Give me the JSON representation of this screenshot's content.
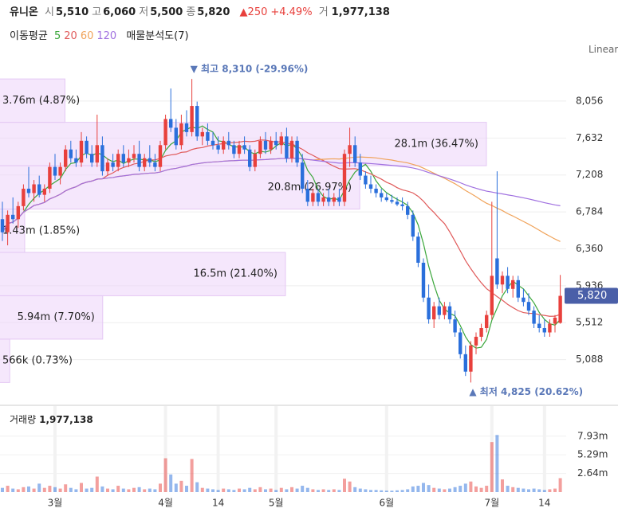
{
  "chart_data": {
    "type": "candlestick",
    "header": {
      "name": "유니온",
      "fields": [
        {
          "label": "시",
          "value": "5,510"
        },
        {
          "label": "고",
          "value": "6,060"
        },
        {
          "label": "저",
          "value": "5,500"
        },
        {
          "label": "종",
          "value": "5,820"
        }
      ],
      "change": "▲250",
      "change_pct": "+4.49%",
      "volume_label": "거",
      "volume_value": "1,977,138"
    },
    "indicator_title": "이동평균",
    "moving_averages": [
      {
        "period": 5,
        "color": "#3aa63a"
      },
      {
        "period": 20,
        "color": "#e05a5a"
      },
      {
        "period": 60,
        "color": "#f0a35a"
      },
      {
        "period": 120,
        "color": "#a070e0"
      }
    ],
    "profile_title": "매물분석도(7)",
    "scale_label": "Linear",
    "categories": [
      null,
      null,
      null,
      null,
      null,
      null,
      null,
      null,
      null,
      null,
      "3월",
      null,
      null,
      null,
      null,
      null,
      null,
      null,
      null,
      null,
      null,
      null,
      null,
      null,
      null,
      null,
      null,
      null,
      null,
      null,
      null,
      "4월",
      null,
      null,
      null,
      null,
      null,
      null,
      null,
      null,
      null,
      "14",
      null,
      null,
      null,
      null,
      null,
      null,
      null,
      null,
      null,
      null,
      "5월",
      null,
      null,
      null,
      null,
      null,
      null,
      null,
      null,
      null,
      null,
      null,
      null,
      null,
      null,
      null,
      null,
      null,
      null,
      null,
      null,
      "6월",
      null,
      null,
      null,
      null,
      null,
      null,
      null,
      null,
      null,
      null,
      null,
      null,
      null,
      null,
      null,
      null,
      null,
      null,
      null,
      "7월",
      null,
      null,
      null,
      null,
      null,
      null,
      null,
      null,
      null,
      "14",
      null,
      null,
      null
    ],
    "candles": [
      [
        6700,
        6900,
        6450,
        6550
      ],
      [
        6550,
        6800,
        6400,
        6750
      ],
      [
        6750,
        6950,
        6650,
        6700
      ],
      [
        6700,
        6900,
        6600,
        6850
      ],
      [
        6850,
        7100,
        6800,
        7050
      ],
      [
        7050,
        7300,
        6950,
        7000
      ],
      [
        7000,
        7150,
        6900,
        7100
      ],
      [
        7100,
        7200,
        6950,
        6980
      ],
      [
        6980,
        7100,
        6900,
        7050
      ],
      [
        7050,
        7350,
        7000,
        7300
      ],
      [
        7300,
        7450,
        7150,
        7200
      ],
      [
        7200,
        7350,
        7100,
        7300
      ],
      [
        7300,
        7550,
        7250,
        7500
      ],
      [
        7500,
        7600,
        7350,
        7400
      ],
      [
        7400,
        7500,
        7300,
        7350
      ],
      [
        7350,
        7700,
        7300,
        7600
      ],
      [
        7600,
        7650,
        7400,
        7450
      ],
      [
        7450,
        7550,
        7300,
        7350
      ],
      [
        7350,
        7900,
        7300,
        7550
      ],
      [
        7550,
        7650,
        7200,
        7250
      ],
      [
        7250,
        7400,
        7200,
        7350
      ],
      [
        7350,
        7450,
        7250,
        7300
      ],
      [
        7300,
        7500,
        7250,
        7450
      ],
      [
        7450,
        7550,
        7300,
        7350
      ],
      [
        7350,
        7500,
        7300,
        7400
      ],
      [
        7400,
        7550,
        7350,
        7450
      ],
      [
        7450,
        7600,
        7250,
        7300
      ],
      [
        7300,
        7450,
        7250,
        7400
      ],
      [
        7400,
        7550,
        7300,
        7350
      ],
      [
        7350,
        7450,
        7250,
        7300
      ],
      [
        7300,
        7600,
        7250,
        7550
      ],
      [
        7550,
        7900,
        7500,
        7850
      ],
      [
        7850,
        8200,
        7700,
        7750
      ],
      [
        7750,
        7850,
        7500,
        7550
      ],
      [
        7550,
        7900,
        7500,
        7800
      ],
      [
        7800,
        7950,
        7650,
        7700
      ],
      [
        7700,
        8310,
        7650,
        8000
      ],
      [
        8000,
        8050,
        7600,
        7650
      ],
      [
        7650,
        7750,
        7550,
        7700
      ],
      [
        7700,
        7800,
        7550,
        7600
      ],
      [
        7600,
        7700,
        7500,
        7550
      ],
      [
        7550,
        7650,
        7450,
        7500
      ],
      [
        7500,
        7650,
        7450,
        7600
      ],
      [
        7600,
        7700,
        7500,
        7550
      ],
      [
        7550,
        7600,
        7400,
        7450
      ],
      [
        7450,
        7600,
        7400,
        7550
      ],
      [
        7550,
        7650,
        7450,
        7500
      ],
      [
        7500,
        7550,
        7250,
        7300
      ],
      [
        7300,
        7500,
        7250,
        7450
      ],
      [
        7450,
        7650,
        7400,
        7600
      ],
      [
        7600,
        7700,
        7450,
        7500
      ],
      [
        7500,
        7650,
        7450,
        7600
      ],
      [
        7600,
        7700,
        7500,
        7550
      ],
      [
        7550,
        7700,
        7450,
        7650
      ],
      [
        7650,
        7750,
        7350,
        7400
      ],
      [
        7400,
        7650,
        7350,
        7600
      ],
      [
        7600,
        7650,
        7300,
        7350
      ],
      [
        7350,
        7450,
        7000,
        7050
      ],
      [
        7050,
        7150,
        6850,
        6900
      ],
      [
        6900,
        7050,
        6850,
        7000
      ],
      [
        7000,
        7050,
        6850,
        6900
      ],
      [
        6900,
        7000,
        6850,
        6950
      ],
      [
        6950,
        7050,
        6850,
        6900
      ],
      [
        6900,
        7000,
        6850,
        6950
      ],
      [
        6950,
        7050,
        6850,
        6900
      ],
      [
        6900,
        7500,
        6850,
        7450
      ],
      [
        7450,
        7750,
        7300,
        7550
      ],
      [
        7550,
        7650,
        7300,
        7350
      ],
      [
        7350,
        7450,
        7150,
        7200
      ],
      [
        7200,
        7250,
        7050,
        7100
      ],
      [
        7100,
        7200,
        7000,
        7050
      ],
      [
        7050,
        7100,
        6950,
        7000
      ],
      [
        7000,
        7050,
        6900,
        6950
      ],
      [
        6950,
        7000,
        6900,
        6920
      ],
      [
        6920,
        6980,
        6880,
        6900
      ],
      [
        6900,
        6950,
        6850,
        6870
      ],
      [
        6870,
        6950,
        6800,
        6850
      ],
      [
        6850,
        6900,
        6700,
        6750
      ],
      [
        6750,
        6800,
        6450,
        6500
      ],
      [
        6500,
        6550,
        6150,
        6200
      ],
      [
        6200,
        6250,
        5750,
        5800
      ],
      [
        5800,
        5950,
        5500,
        5550
      ],
      [
        5550,
        5750,
        5450,
        5700
      ],
      [
        5700,
        5800,
        5550,
        5600
      ],
      [
        5600,
        5750,
        5550,
        5700
      ],
      [
        5700,
        5750,
        5500,
        5550
      ],
      [
        5550,
        5650,
        5350,
        5400
      ],
      [
        5400,
        5450,
        5100,
        5150
      ],
      [
        5150,
        5250,
        4900,
        4950
      ],
      [
        4950,
        5300,
        4825,
        5250
      ],
      [
        5250,
        5400,
        5150,
        5350
      ],
      [
        5350,
        5500,
        5300,
        5450
      ],
      [
        5450,
        5650,
        5400,
        5600
      ],
      [
        5600,
        6900,
        5550,
        6050
      ],
      [
        6250,
        7250,
        5900,
        5950
      ],
      [
        5950,
        6100,
        5850,
        6050
      ],
      [
        6050,
        6150,
        5850,
        5900
      ],
      [
        5900,
        6050,
        5800,
        6000
      ],
      [
        6000,
        6050,
        5750,
        5800
      ],
      [
        5800,
        5900,
        5700,
        5750
      ],
      [
        5750,
        5850,
        5600,
        5650
      ],
      [
        5650,
        5700,
        5450,
        5500
      ],
      [
        5500,
        5600,
        5400,
        5450
      ],
      [
        5450,
        5550,
        5350,
        5400
      ],
      [
        5400,
        5550,
        5350,
        5500
      ],
      [
        5500,
        5600,
        5400,
        5570
      ],
      [
        5510,
        6060,
        5500,
        5820
      ]
    ],
    "up_color": "#e8403c",
    "down_color": "#2a6fdb",
    "ylim": [
      4600,
      8485
    ],
    "yticks": [
      {
        "value": 5088,
        "label": "5,088"
      },
      {
        "value": 5512,
        "label": "5,512"
      },
      {
        "value": 5936,
        "label": "5,936"
      },
      {
        "value": 6360,
        "label": "6,360"
      },
      {
        "value": 6784,
        "label": "6,784"
      },
      {
        "value": 7208,
        "label": "7,208"
      },
      {
        "value": 7632,
        "label": "7,632"
      },
      {
        "value": 8056,
        "label": "8,056"
      }
    ],
    "last_label": "5,820",
    "annotations": [
      {
        "text": "▼ 최고 8,310 (-29.96%)",
        "value": 8310
      },
      {
        "text": "▲ 최저 4,825 (20.62%)",
        "value": 4825
      }
    ],
    "volume_profile": {
      "bins": [
        4825,
        5323,
        5821,
        6319,
        6816,
        7314,
        7812,
        8310
      ],
      "values": [
        0.73,
        7.7,
        21.4,
        1.85,
        26.97,
        36.47,
        4.87
      ],
      "value_labels": [
        "566k (0.73%)",
        "5.94m (7.70%)",
        "16.5m (21.40%)",
        "1.43m (1.85%)",
        "20.8m (26.97%)",
        "28.1m (36.47%)",
        "3.76m (4.87%)"
      ]
    },
    "volume_title": "거래량",
    "volume_value": "1,977,138",
    "volume": [
      600000,
      900000,
      500000,
      400000,
      700000,
      800000,
      500000,
      1200000,
      600000,
      900000,
      700000,
      500000,
      1100000,
      600000,
      400000,
      1300000,
      500000,
      600000,
      2200000,
      800000,
      500000,
      400000,
      900000,
      500000,
      400000,
      600000,
      700000,
      400000,
      500000,
      400000,
      1200000,
      4800000,
      2500000,
      1200000,
      1600000,
      900000,
      4700000,
      1400000,
      600000,
      500000,
      400000,
      300000,
      500000,
      400000,
      300000,
      500000,
      400000,
      600000,
      400000,
      700000,
      400000,
      500000,
      300000,
      600000,
      400000,
      700000,
      500000,
      900000,
      600000,
      400000,
      300000,
      400000,
      300000,
      400000,
      300000,
      1900000,
      1500000,
      700000,
      500000,
      400000,
      300000,
      300000,
      250000,
      200000,
      200000,
      250000,
      300000,
      400000,
      800000,
      900000,
      1300000,
      1000000,
      600000,
      500000,
      400000,
      500000,
      700000,
      900000,
      1200000,
      1500000,
      800000,
      600000,
      900000,
      7100000,
      8100000,
      1800000,
      900000,
      700000,
      600000,
      500000,
      400000,
      500000,
      400000,
      300000,
      400000,
      500000,
      1977138
    ],
    "volume_ylim": [
      0,
      12200000
    ],
    "volume_yticks": [
      {
        "value": 2640000,
        "label": "2.64m"
      },
      {
        "value": 5290000,
        "label": "5.29m"
      },
      {
        "value": 7930000,
        "label": "7.93m"
      }
    ]
  }
}
